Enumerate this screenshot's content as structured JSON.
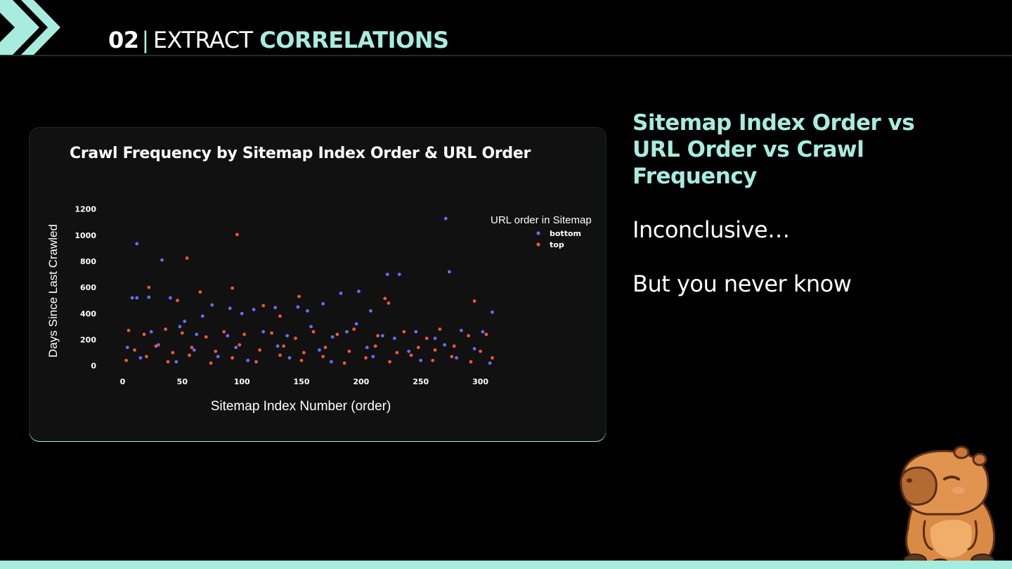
{
  "header": {
    "number": "02",
    "separator": "|",
    "word": "EXTRACT",
    "accent_word": "CORRELATIONS"
  },
  "side": {
    "heading": "Sitemap Index Order vs URL Order vs Crawl Frequency",
    "line1": "Inconclusive…",
    "line2": "But you never know"
  },
  "colors": {
    "accent": "#a8ecdf",
    "background": "#000000",
    "card": "#111111",
    "bottom_series": "#636efa",
    "top_series": "#ef553b"
  },
  "chart_data": {
    "type": "scatter",
    "title": "Crawl Frequency by Sitemap Index Order & URL Order",
    "xlabel": "Sitemap Index Number (order)",
    "ylabel": "Days Since Last Crawled",
    "xlim": [
      -5,
      315
    ],
    "ylim": [
      -40,
      1220
    ],
    "xticks": [
      0,
      50,
      100,
      150,
      200,
      250,
      300
    ],
    "yticks": [
      0,
      200,
      400,
      600,
      800,
      1000,
      1200
    ],
    "grid": false,
    "legend": {
      "title": "URL order in Sitemap",
      "position": "top-right"
    },
    "series": [
      {
        "name": "bottom",
        "color": "#636efa",
        "points": [
          [
            12,
            935
          ],
          [
            33,
            810
          ],
          [
            271,
            1128
          ],
          [
            274,
            720
          ],
          [
            222,
            700
          ],
          [
            232,
            700
          ],
          [
            183,
            555
          ],
          [
            198,
            570
          ],
          [
            12,
            520
          ],
          [
            22,
            525
          ],
          [
            40,
            520
          ],
          [
            8,
            520
          ],
          [
            208,
            420
          ],
          [
            168,
            475
          ],
          [
            75,
            465
          ],
          [
            90,
            440
          ],
          [
            110,
            430
          ],
          [
            128,
            445
          ],
          [
            147,
            450
          ],
          [
            155,
            420
          ],
          [
            24,
            260
          ],
          [
            48,
            300
          ],
          [
            62,
            240
          ],
          [
            88,
            230
          ],
          [
            118,
            260
          ],
          [
            138,
            230
          ],
          [
            158,
            300
          ],
          [
            176,
            220
          ],
          [
            188,
            260
          ],
          [
            196,
            320
          ],
          [
            218,
            230
          ],
          [
            228,
            210
          ],
          [
            246,
            260
          ],
          [
            262,
            210
          ],
          [
            284,
            270
          ],
          [
            302,
            260
          ],
          [
            310,
            410
          ],
          [
            4,
            140
          ],
          [
            30,
            160
          ],
          [
            60,
            120
          ],
          [
            95,
            140
          ],
          [
            130,
            150
          ],
          [
            165,
            120
          ],
          [
            205,
            140
          ],
          [
            240,
            110
          ],
          [
            270,
            160
          ],
          [
            295,
            130
          ],
          [
            15,
            60
          ],
          [
            45,
            30
          ],
          [
            80,
            70
          ],
          [
            105,
            40
          ],
          [
            140,
            60
          ],
          [
            175,
            30
          ],
          [
            210,
            70
          ],
          [
            250,
            40
          ],
          [
            280,
            60
          ],
          [
            308,
            20
          ],
          [
            67,
            380
          ],
          [
            100,
            400
          ],
          [
            52,
            340
          ]
        ]
      },
      {
        "name": "top",
        "color": "#ef553b",
        "points": [
          [
            96,
            1005
          ],
          [
            54,
            825
          ],
          [
            92,
            595
          ],
          [
            22,
            600
          ],
          [
            118,
            460
          ],
          [
            148,
            530
          ],
          [
            220,
            515
          ],
          [
            223,
            480
          ],
          [
            295,
            495
          ],
          [
            65,
            565
          ],
          [
            5,
            270
          ],
          [
            18,
            240
          ],
          [
            36,
            280
          ],
          [
            50,
            250
          ],
          [
            70,
            220
          ],
          [
            85,
            260
          ],
          [
            102,
            240
          ],
          [
            125,
            250
          ],
          [
            145,
            210
          ],
          [
            160,
            260
          ],
          [
            180,
            240
          ],
          [
            194,
            280
          ],
          [
            214,
            230
          ],
          [
            236,
            260
          ],
          [
            255,
            210
          ],
          [
            266,
            280
          ],
          [
            290,
            230
          ],
          [
            305,
            240
          ],
          [
            10,
            120
          ],
          [
            28,
            150
          ],
          [
            42,
            100
          ],
          [
            58,
            140
          ],
          [
            78,
            110
          ],
          [
            98,
            160
          ],
          [
            115,
            120
          ],
          [
            135,
            150
          ],
          [
            152,
            100
          ],
          [
            170,
            140
          ],
          [
            190,
            110
          ],
          [
            212,
            150
          ],
          [
            230,
            100
          ],
          [
            248,
            140
          ],
          [
            262,
            120
          ],
          [
            278,
            150
          ],
          [
            300,
            110
          ],
          [
            3,
            40
          ],
          [
            20,
            70
          ],
          [
            38,
            30
          ],
          [
            56,
            80
          ],
          [
            74,
            20
          ],
          [
            92,
            60
          ],
          [
            112,
            30
          ],
          [
            132,
            80
          ],
          [
            150,
            40
          ],
          [
            168,
            70
          ],
          [
            186,
            20
          ],
          [
            204,
            60
          ],
          [
            224,
            30
          ],
          [
            242,
            80
          ],
          [
            260,
            40
          ],
          [
            276,
            70
          ],
          [
            292,
            30
          ],
          [
            310,
            60
          ],
          [
            46,
            500
          ],
          [
            132,
            380
          ]
        ]
      }
    ]
  }
}
